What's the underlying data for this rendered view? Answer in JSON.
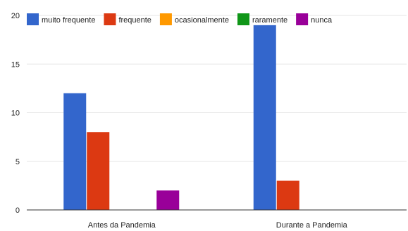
{
  "chart_data": {
    "type": "bar",
    "title": "",
    "xlabel": "",
    "ylabel": "",
    "ylim": [
      0,
      20
    ],
    "yticks": [
      0,
      5,
      10,
      15,
      20
    ],
    "grid": true,
    "legend_position": "top-left",
    "categories": [
      "Antes da Pandemia",
      "Durante a Pandemia"
    ],
    "series": [
      {
        "name": "muito frequente",
        "color": "#3366cc",
        "values": [
          12,
          19
        ]
      },
      {
        "name": "frequente",
        "color": "#dc3912",
        "values": [
          8,
          3
        ]
      },
      {
        "name": "ocasionalmente",
        "color": "#ff9900",
        "values": [
          0,
          0
        ]
      },
      {
        "name": "raramente",
        "color": "#109618",
        "values": [
          0,
          0
        ]
      },
      {
        "name": "nunca",
        "color": "#990099",
        "values": [
          2,
          0
        ]
      }
    ]
  }
}
